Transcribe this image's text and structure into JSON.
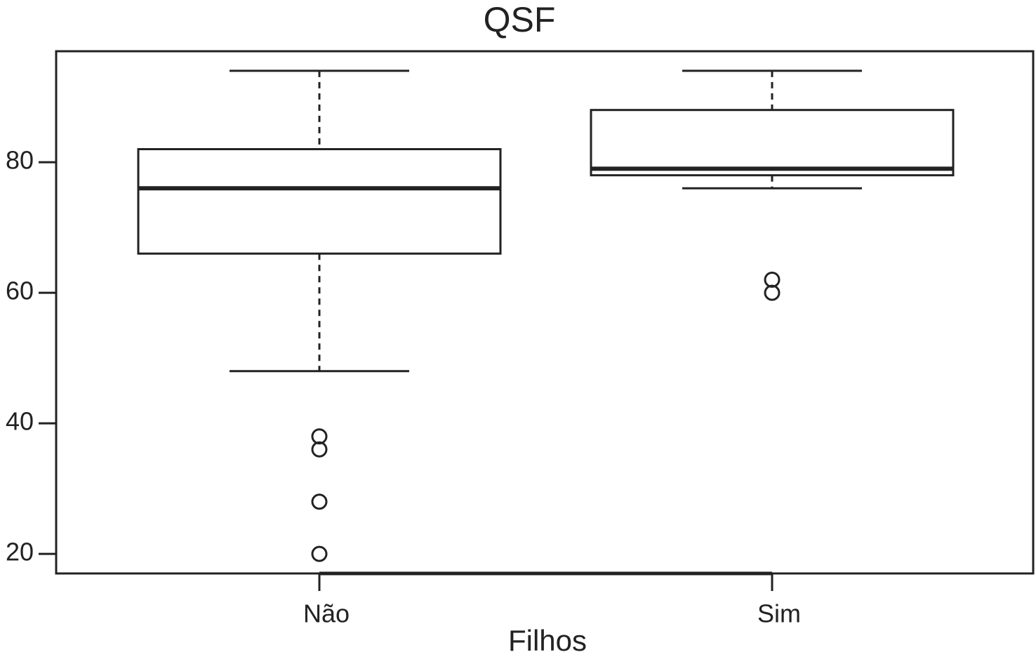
{
  "chart_data": {
    "type": "box",
    "title": "QSF",
    "x_label": "Filhos",
    "categories": [
      "Não",
      "Sim"
    ],
    "boxes": [
      {
        "whisker_low": 48,
        "q1": 66,
        "median": 76,
        "q3": 82,
        "whisker_high": 94,
        "outliers": [
          38,
          36,
          28,
          20
        ]
      },
      {
        "whisker_low": 76,
        "q1": 78,
        "median": 79,
        "q3": 88,
        "whisker_high": 94,
        "outliers": [
          62,
          60
        ]
      }
    ],
    "color": "#222222",
    "ylim": [
      17,
      97
    ],
    "yticks": [
      20,
      40,
      60,
      80
    ]
  }
}
